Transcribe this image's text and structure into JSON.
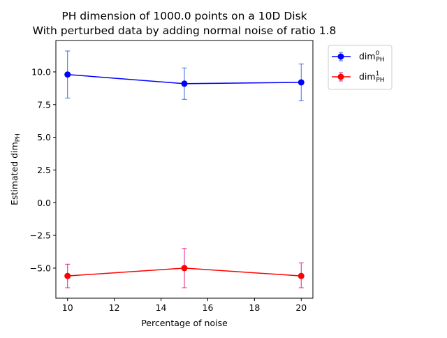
{
  "chart_data": {
    "type": "line",
    "title_line1": "PH dimension of 1000.0 points on a 10D Disk",
    "title_line2": "With perturbed data by adding normal noise of ratio 1.8",
    "xlabel": "Percentage of noise",
    "ylabel_main": "Estimated dim",
    "ylabel_sub": "PH",
    "xlim": [
      9.5,
      20.5
    ],
    "ylim": [
      -7.3,
      12.4
    ],
    "xticks": [
      10,
      12,
      14,
      16,
      18,
      20
    ],
    "xtick_labels": [
      "10",
      "12",
      "14",
      "16",
      "18",
      "20"
    ],
    "yticks": [
      -5.0,
      -2.5,
      0.0,
      2.5,
      5.0,
      7.5,
      10.0
    ],
    "ytick_labels": [
      "−5.0",
      "−2.5",
      "0.0",
      "2.5",
      "5.0",
      "7.5",
      "10.0"
    ],
    "grid": false,
    "legend_position": "outside-top-right",
    "x": [
      10,
      15,
      20
    ],
    "series": [
      {
        "name": "dim",
        "name_sup": "0",
        "name_sub": "PH",
        "values": [
          9.8,
          9.1,
          9.2
        ],
        "err_low": [
          8.0,
          7.9,
          7.8
        ],
        "err_high": [
          11.6,
          10.3,
          10.6
        ],
        "color": "#0000ff",
        "err_color": "#4169e1"
      },
      {
        "name": "dim",
        "name_sup": "1",
        "name_sub": "PH",
        "values": [
          -5.6,
          -5.0,
          -5.6
        ],
        "err_low": [
          -6.5,
          -6.5,
          -6.5
        ],
        "err_high": [
          -4.7,
          -3.5,
          -4.6
        ],
        "color": "#ff0000",
        "err_color": "#e0208f"
      }
    ]
  }
}
